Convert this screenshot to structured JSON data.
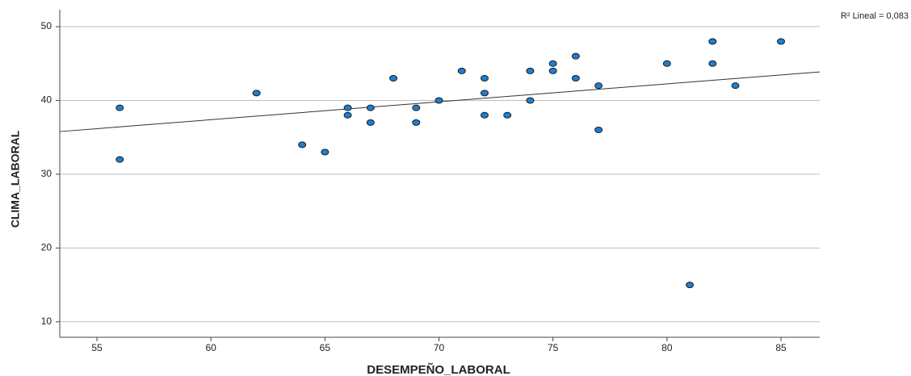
{
  "chart_data": {
    "type": "scatter",
    "x_label": "DESEMPEÑO_LABORAL",
    "y_label": "CLIMA_LABORAL",
    "annotation": "R² Lineal = 0,083",
    "color": "#1e7fd0",
    "x": [
      56,
      56,
      62,
      64,
      65,
      66,
      66,
      67,
      67,
      68,
      69,
      69,
      70,
      71,
      72,
      72,
      72,
      73,
      74,
      74,
      75,
      75,
      76,
      76,
      77,
      77,
      80,
      81,
      82,
      82,
      83,
      85
    ],
    "values": [
      39,
      32,
      41,
      34,
      33,
      39,
      38,
      39,
      37,
      43,
      39,
      37,
      40,
      44,
      43,
      41,
      38,
      38,
      44,
      40,
      45,
      44,
      46,
      43,
      42,
      36,
      45,
      15,
      48,
      45,
      42,
      48
    ],
    "fit_line": {
      "x": [
        53.37,
        86.7
      ],
      "y": [
        35.78,
        43.87
      ]
    },
    "xlim": [
      53.37,
      86.7
    ],
    "ylim": [
      7.9,
      52.3
    ],
    "xticks": [
      55,
      60,
      65,
      70,
      75,
      80,
      85
    ],
    "yticks": [
      10,
      20,
      30,
      40,
      50
    ],
    "grid": true
  }
}
